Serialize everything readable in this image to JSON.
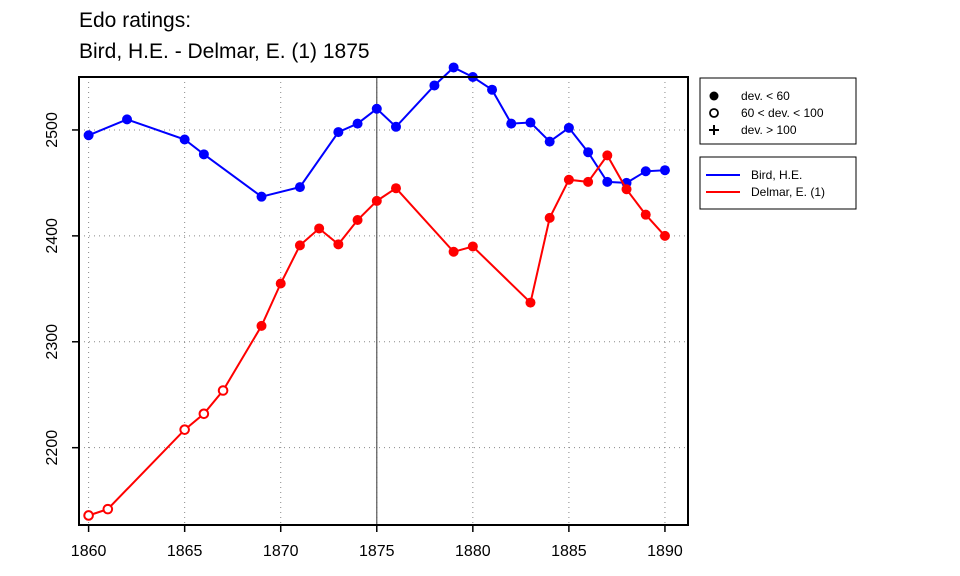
{
  "title_line1": "Edo ratings:",
  "title_line2": "Bird, H.E. - Delmar, E. (1) 1875",
  "chart_data": {
    "type": "line",
    "xlim": [
      1859.5,
      1891.2
    ],
    "ylim": [
      2127,
      2550
    ],
    "x_ticks": [
      1860,
      1865,
      1870,
      1875,
      1880,
      1885,
      1890
    ],
    "y_ticks": [
      2200,
      2300,
      2400,
      2500
    ],
    "grid": true,
    "highlight_x": 1875,
    "deviation_legend": [
      {
        "marker": "filled-circle",
        "label": "dev. < 60"
      },
      {
        "marker": "open-circle",
        "label": "60 < dev. < 100"
      },
      {
        "marker": "plus",
        "label": "dev. > 100"
      }
    ],
    "series": [
      {
        "name": "Bird, H.E.",
        "color": "#0000ff",
        "points": [
          {
            "x": 1860,
            "y": 2495,
            "m": "filled"
          },
          {
            "x": 1862,
            "y": 2510,
            "m": "filled"
          },
          {
            "x": 1865,
            "y": 2491,
            "m": "filled"
          },
          {
            "x": 1866,
            "y": 2477,
            "m": "filled"
          },
          {
            "x": 1869,
            "y": 2437,
            "m": "filled"
          },
          {
            "x": 1871,
            "y": 2446,
            "m": "filled"
          },
          {
            "x": 1873,
            "y": 2498,
            "m": "filled"
          },
          {
            "x": 1874,
            "y": 2506,
            "m": "filled"
          },
          {
            "x": 1875,
            "y": 2520,
            "m": "filled"
          },
          {
            "x": 1876,
            "y": 2503,
            "m": "filled"
          },
          {
            "x": 1878,
            "y": 2542,
            "m": "filled"
          },
          {
            "x": 1879,
            "y": 2559,
            "m": "filled"
          },
          {
            "x": 1880,
            "y": 2550,
            "m": "filled"
          },
          {
            "x": 1881,
            "y": 2538,
            "m": "filled"
          },
          {
            "x": 1882,
            "y": 2506,
            "m": "filled"
          },
          {
            "x": 1883,
            "y": 2507,
            "m": "filled"
          },
          {
            "x": 1884,
            "y": 2489,
            "m": "filled"
          },
          {
            "x": 1885,
            "y": 2502,
            "m": "filled"
          },
          {
            "x": 1886,
            "y": 2479,
            "m": "filled"
          },
          {
            "x": 1887,
            "y": 2451,
            "m": "filled"
          },
          {
            "x": 1888,
            "y": 2450,
            "m": "filled"
          },
          {
            "x": 1889,
            "y": 2461,
            "m": "filled"
          },
          {
            "x": 1890,
            "y": 2462,
            "m": "filled"
          }
        ]
      },
      {
        "name": "Delmar, E. (1)",
        "color": "#ff0000",
        "points": [
          {
            "x": 1860,
            "y": 2136,
            "m": "open"
          },
          {
            "x": 1861,
            "y": 2142,
            "m": "open"
          },
          {
            "x": 1865,
            "y": 2217,
            "m": "open"
          },
          {
            "x": 1866,
            "y": 2232,
            "m": "open"
          },
          {
            "x": 1867,
            "y": 2254,
            "m": "open"
          },
          {
            "x": 1869,
            "y": 2315,
            "m": "filled"
          },
          {
            "x": 1870,
            "y": 2355,
            "m": "filled"
          },
          {
            "x": 1871,
            "y": 2391,
            "m": "filled"
          },
          {
            "x": 1872,
            "y": 2407,
            "m": "filled"
          },
          {
            "x": 1873,
            "y": 2392,
            "m": "filled"
          },
          {
            "x": 1874,
            "y": 2415,
            "m": "filled"
          },
          {
            "x": 1875,
            "y": 2433,
            "m": "filled"
          },
          {
            "x": 1876,
            "y": 2445,
            "m": "filled"
          },
          {
            "x": 1879,
            "y": 2385,
            "m": "filled"
          },
          {
            "x": 1880,
            "y": 2390,
            "m": "filled"
          },
          {
            "x": 1883,
            "y": 2337,
            "m": "filled"
          },
          {
            "x": 1884,
            "y": 2417,
            "m": "filled"
          },
          {
            "x": 1885,
            "y": 2453,
            "m": "filled"
          },
          {
            "x": 1886,
            "y": 2451,
            "m": "filled"
          },
          {
            "x": 1887,
            "y": 2476,
            "m": "filled"
          },
          {
            "x": 1888,
            "y": 2444,
            "m": "filled"
          },
          {
            "x": 1889,
            "y": 2420,
            "m": "filled"
          },
          {
            "x": 1890,
            "y": 2400,
            "m": "filled"
          }
        ]
      }
    ]
  }
}
